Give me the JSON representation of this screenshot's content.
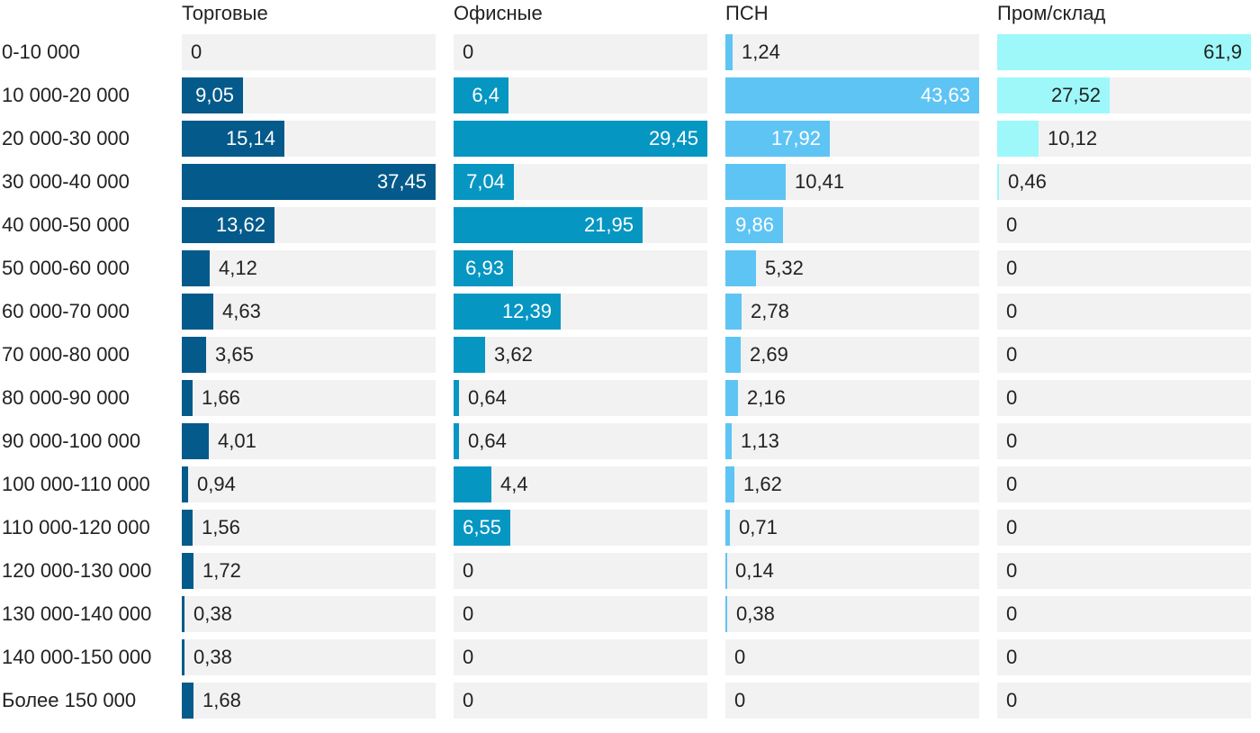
{
  "chart_data": {
    "type": "bar",
    "orientation": "horizontal",
    "layout": "small-multiples",
    "categories": [
      "0-10 000",
      "10 000-20 000",
      "20 000-30 000",
      "30 000-40 000",
      "40 000-50 000",
      "50 000-60 000",
      "60 000-70 000",
      "70 000-80 000",
      "80 000-90 000",
      "90 000-100 000",
      "100 000-110 000",
      "110 000-120 000",
      "120 000-130 000",
      "130 000-140 000",
      "140 000-150 000",
      "Более 150 000"
    ],
    "series": [
      {
        "name": "Торговые",
        "color": "#045a8a",
        "scale_max": 37.45,
        "values": [
          0,
          9.05,
          15.14,
          37.45,
          13.62,
          4.12,
          4.63,
          3.65,
          1.66,
          4.01,
          0.94,
          1.56,
          1.72,
          0.38,
          0.38,
          1.68
        ],
        "labels": [
          "0",
          "9,05",
          "15,14",
          "37,45",
          "13,62",
          "4,12",
          "4,63",
          "3,65",
          "1,66",
          "4,01",
          "0,94",
          "1,56",
          "1,72",
          "0,38",
          "0,38",
          "1,68"
        ]
      },
      {
        "name": "Офисные",
        "color": "#0696c2",
        "scale_max": 29.45,
        "values": [
          0,
          6.4,
          29.45,
          7.04,
          21.95,
          6.93,
          12.39,
          3.62,
          0.64,
          0.64,
          4.4,
          6.55,
          0,
          0,
          0,
          0
        ],
        "labels": [
          "0",
          "6,4",
          "29,45",
          "7,04",
          "21,95",
          "6,93",
          "12,39",
          "3,62",
          "0,64",
          "0,64",
          "4,4",
          "6,55",
          "0",
          "0",
          "0",
          "0"
        ]
      },
      {
        "name": "ПСН",
        "color": "#5ec4f4",
        "scale_max": 43.63,
        "values": [
          1.24,
          43.63,
          17.92,
          10.41,
          9.86,
          5.32,
          2.78,
          2.69,
          2.16,
          1.13,
          1.62,
          0.71,
          0.14,
          0.38,
          0,
          0
        ],
        "labels": [
          "1,24",
          "43,63",
          "17,92",
          "10,41",
          "9,86",
          "5,32",
          "2,78",
          "2,69",
          "2,16",
          "1,13",
          "1,62",
          "0,71",
          "0,14",
          "0,38",
          "0",
          "0"
        ]
      },
      {
        "name": "Пром/склад",
        "color": "#9ef8fa",
        "scale_max": 61.9,
        "values": [
          61.9,
          27.52,
          10.12,
          0.46,
          0,
          0,
          0,
          0,
          0,
          0,
          0,
          0,
          0,
          0,
          0,
          0
        ],
        "labels": [
          "61,9",
          "27,52",
          "10,12",
          "0,46",
          "0",
          "0",
          "0",
          "0",
          "0",
          "0",
          "0",
          "0",
          "0",
          "0",
          "0",
          "0"
        ]
      }
    ],
    "track_color": "#f2f2f2"
  }
}
